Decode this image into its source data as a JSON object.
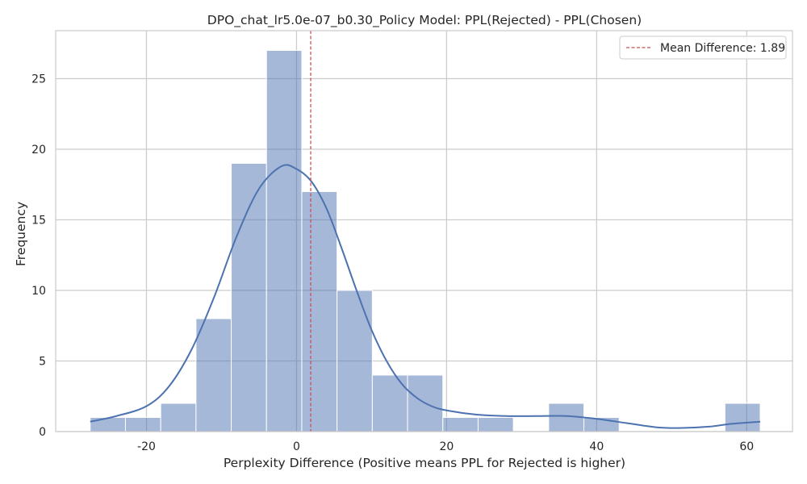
{
  "chart_data": {
    "type": "histogram",
    "title": "DPO_chat_lr5.0e-07_b0.30_Policy Model: PPL(Rejected) - PPL(Chosen)",
    "xlabel": "Perplexity Difference (Positive means PPL for Rejected is higher)",
    "ylabel": "Frequency",
    "xlim": [
      -32.1,
      66.1
    ],
    "ylim": [
      0,
      28.4
    ],
    "xticks": [
      -20,
      0,
      20,
      40,
      60
    ],
    "yticks": [
      0,
      5,
      10,
      15,
      20,
      25
    ],
    "grid": true,
    "bar_color": "#4c72b0",
    "bars": [
      {
        "x0": -27.5,
        "x1": -22.8,
        "count": 1
      },
      {
        "x0": -22.8,
        "x1": -18.1,
        "count": 1
      },
      {
        "x0": -18.1,
        "x1": -13.4,
        "count": 2
      },
      {
        "x0": -13.4,
        "x1": -8.7,
        "count": 8
      },
      {
        "x0": -8.7,
        "x1": -4.0,
        "count": 19
      },
      {
        "x0": -4.0,
        "x1": 0.7,
        "count": 27
      },
      {
        "x0": 0.7,
        "x1": 5.4,
        "count": 17
      },
      {
        "x0": 5.4,
        "x1": 10.1,
        "count": 10
      },
      {
        "x0": 10.1,
        "x1": 14.8,
        "count": 4
      },
      {
        "x0": 14.8,
        "x1": 19.5,
        "count": 4
      },
      {
        "x0": 19.5,
        "x1": 24.2,
        "count": 1
      },
      {
        "x0": 24.2,
        "x1": 28.9,
        "count": 1
      },
      {
        "x0": 28.9,
        "x1": 33.6,
        "count": 0
      },
      {
        "x0": 33.6,
        "x1": 38.3,
        "count": 2
      },
      {
        "x0": 38.3,
        "x1": 43.0,
        "count": 1
      },
      {
        "x0": 43.0,
        "x1": 47.7,
        "count": 0
      },
      {
        "x0": 47.7,
        "x1": 52.4,
        "count": 0
      },
      {
        "x0": 52.4,
        "x1": 57.1,
        "count": 0
      },
      {
        "x0": 57.1,
        "x1": 61.8,
        "count": 2
      }
    ],
    "kde": {
      "color": "#4c72b0",
      "x": [
        -27.5,
        -24,
        -20,
        -17,
        -14,
        -11,
        -8,
        -5,
        -2,
        0,
        2,
        4,
        6,
        8,
        10,
        12,
        14,
        16,
        18,
        20,
        24,
        28,
        32,
        36,
        40,
        44,
        48,
        51,
        55,
        58,
        61.8
      ],
      "y": [
        0.7,
        1.1,
        1.8,
        3.2,
        5.8,
        9.5,
        13.8,
        17.2,
        18.8,
        18.6,
        17.7,
        15.8,
        13.0,
        10.0,
        7.2,
        5.0,
        3.4,
        2.4,
        1.8,
        1.5,
        1.2,
        1.1,
        1.1,
        1.1,
        0.9,
        0.6,
        0.3,
        0.25,
        0.35,
        0.55,
        0.7
      ]
    },
    "mean_line": {
      "x": 1.89,
      "color": "#c44e52",
      "label": "Mean Difference: 1.89"
    },
    "legend_position": "top-right"
  }
}
